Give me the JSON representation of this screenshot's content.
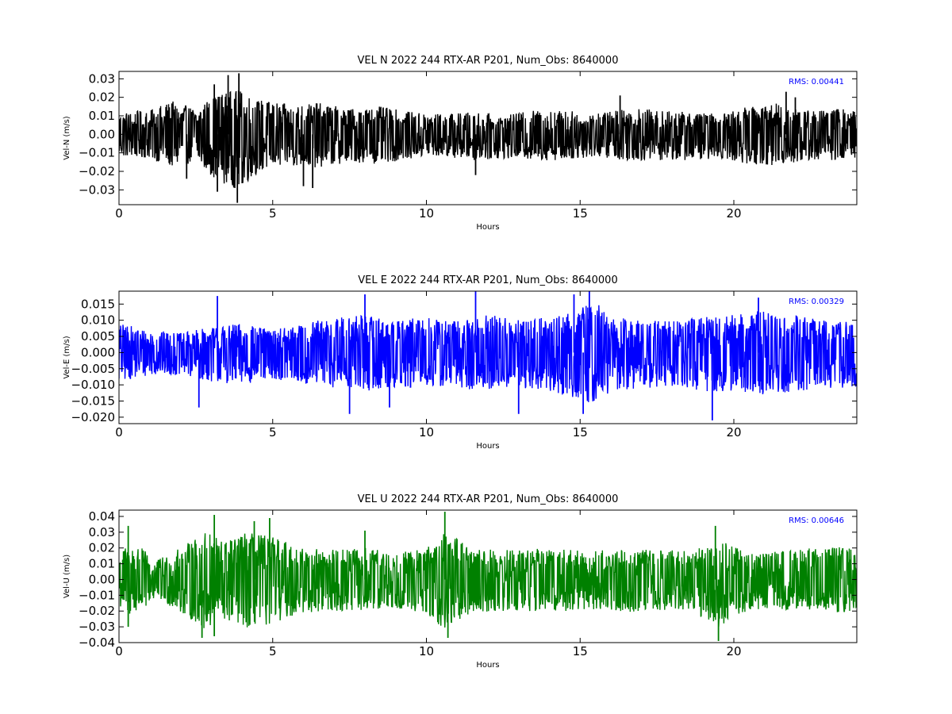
{
  "chart_data": [
    {
      "type": "line",
      "title": "VEL N 2022 244 RTX-AR  P201, Num_Obs: 8640000",
      "xlabel": "Hours",
      "ylabel": "Vel-N (m/s)",
      "xlim": [
        0,
        24
      ],
      "ylim": [
        -0.038,
        0.034
      ],
      "x_ticks": [
        0,
        5,
        10,
        15,
        20
      ],
      "y_ticks": [
        -0.03,
        -0.02,
        -0.01,
        0.0,
        0.01,
        0.02,
        0.03
      ],
      "y_tick_labels": [
        "−0.03",
        "−0.02",
        "−0.01",
        "0.00",
        "0.01",
        "0.02",
        "0.03"
      ],
      "color": "#000000",
      "annotation": "RMS:  0.00441",
      "annotation_color": "#0000ff",
      "series": [
        {
          "envelope_hours": [
            0,
            1,
            1.7,
            2.5,
            3.2,
            3.9,
            4.5,
            5.5,
            6.5,
            7.5,
            8.5,
            9.5,
            10.5,
            11.5,
            12.5,
            13.5,
            14.5,
            15.5,
            16.5,
            17.5,
            18.5,
            19.5,
            20.5,
            21.5,
            22.5,
            23.5,
            24
          ],
          "envelope_upper": [
            0.012,
            0.013,
            0.018,
            0.014,
            0.022,
            0.024,
            0.019,
            0.016,
            0.017,
            0.014,
            0.015,
            0.012,
            0.011,
            0.012,
            0.01,
            0.013,
            0.013,
            0.011,
            0.015,
            0.013,
            0.012,
            0.011,
            0.015,
            0.017,
            0.013,
            0.014,
            0.013
          ],
          "envelope_lower": [
            -0.012,
            -0.013,
            -0.018,
            -0.015,
            -0.025,
            -0.03,
            -0.021,
            -0.017,
            -0.018,
            -0.015,
            -0.016,
            -0.013,
            -0.012,
            -0.014,
            -0.013,
            -0.014,
            -0.014,
            -0.012,
            -0.014,
            -0.014,
            -0.014,
            -0.013,
            -0.016,
            -0.017,
            -0.014,
            -0.014,
            -0.013
          ],
          "spikes": [
            {
              "x": 3.9,
              "y": 0.033
            },
            {
              "x": 3.85,
              "y": -0.037
            },
            {
              "x": 3.55,
              "y": 0.032
            },
            {
              "x": 3.2,
              "y": -0.031
            },
            {
              "x": 6.3,
              "y": -0.029
            },
            {
              "x": 6.0,
              "y": -0.028
            },
            {
              "x": 2.2,
              "y": -0.024
            },
            {
              "x": 3.1,
              "y": 0.027
            },
            {
              "x": 21.7,
              "y": 0.023
            },
            {
              "x": 22.0,
              "y": 0.02
            },
            {
              "x": 16.3,
              "y": 0.021
            },
            {
              "x": 11.6,
              "y": -0.022
            }
          ]
        }
      ]
    },
    {
      "type": "line",
      "title": "VEL E 2022 244 RTX-AR  P201, Num_Obs: 8640000",
      "xlabel": "Hours",
      "ylabel": "Vel-E (m/s)",
      "xlim": [
        0,
        24
      ],
      "ylim": [
        -0.022,
        0.019
      ],
      "x_ticks": [
        0,
        5,
        10,
        15,
        20
      ],
      "y_ticks": [
        -0.02,
        -0.015,
        -0.01,
        -0.005,
        0.0,
        0.005,
        0.01,
        0.015
      ],
      "y_tick_labels": [
        "−0.020",
        "−0.015",
        "−0.010",
        "−0.005",
        "0.000",
        "0.005",
        "0.010",
        "0.015"
      ],
      "color": "#0000ff",
      "annotation": "RMS:  0.00329",
      "annotation_color": "#0000ff",
      "series": [
        {
          "envelope_hours": [
            0,
            1,
            2,
            3,
            4,
            5,
            6,
            7,
            8,
            9,
            10,
            11,
            12,
            13,
            14,
            15,
            15.5,
            16,
            17,
            18,
            19,
            20,
            21,
            22,
            23,
            24
          ],
          "envelope_upper": [
            0.009,
            0.007,
            0.006,
            0.008,
            0.009,
            0.007,
            0.009,
            0.011,
            0.012,
            0.01,
            0.011,
            0.01,
            0.012,
            0.01,
            0.011,
            0.014,
            0.016,
            0.011,
            0.01,
            0.01,
            0.011,
            0.012,
            0.013,
            0.012,
            0.01,
            0.01
          ],
          "envelope_lower": [
            -0.009,
            -0.007,
            -0.007,
            -0.009,
            -0.01,
            -0.008,
            -0.01,
            -0.011,
            -0.012,
            -0.011,
            -0.011,
            -0.011,
            -0.012,
            -0.011,
            -0.012,
            -0.015,
            -0.016,
            -0.012,
            -0.011,
            -0.011,
            -0.012,
            -0.012,
            -0.013,
            -0.012,
            -0.011,
            -0.011
          ],
          "spikes": [
            {
              "x": 19.3,
              "y": -0.021
            },
            {
              "x": 7.5,
              "y": -0.019
            },
            {
              "x": 13.0,
              "y": -0.019
            },
            {
              "x": 15.1,
              "y": -0.019
            },
            {
              "x": 11.6,
              "y": 0.019
            },
            {
              "x": 8.0,
              "y": 0.018
            },
            {
              "x": 15.3,
              "y": 0.019
            },
            {
              "x": 3.2,
              "y": 0.0175
            },
            {
              "x": 20.8,
              "y": 0.017
            },
            {
              "x": 14.8,
              "y": 0.018
            },
            {
              "x": 2.6,
              "y": -0.017
            },
            {
              "x": 8.8,
              "y": -0.017
            }
          ]
        }
      ]
    },
    {
      "type": "line",
      "title": "VEL U 2022 244 RTX-AR  P201, Num_Obs: 8640000",
      "xlabel": "Hours",
      "ylabel": "Vel-U (m/s)",
      "xlim": [
        0,
        24
      ],
      "ylim": [
        -0.04,
        0.044
      ],
      "x_ticks": [
        0,
        5,
        10,
        15,
        20
      ],
      "y_ticks": [
        -0.04,
        -0.03,
        -0.02,
        -0.01,
        0.0,
        0.01,
        0.02,
        0.03,
        0.04
      ],
      "y_tick_labels": [
        "−0.04",
        "−0.03",
        "−0.02",
        "−0.01",
        "0.00",
        "0.01",
        "0.02",
        "0.03",
        "0.04"
      ],
      "color": "#008000",
      "annotation": "RMS:  0.00646",
      "annotation_color": "#0000ff",
      "series": [
        {
          "envelope_hours": [
            0,
            0.5,
            1.2,
            2,
            2.8,
            3.5,
            4.2,
            5,
            6,
            7,
            8,
            9,
            10,
            10.6,
            11.5,
            12.5,
            13.5,
            14.5,
            15.5,
            16.5,
            17.5,
            18.5,
            19.5,
            20.5,
            21.5,
            22.5,
            23.5,
            24
          ],
          "envelope_upper": [
            0.018,
            0.024,
            0.012,
            0.02,
            0.03,
            0.025,
            0.03,
            0.027,
            0.02,
            0.019,
            0.02,
            0.017,
            0.02,
            0.03,
            0.02,
            0.019,
            0.02,
            0.019,
            0.018,
            0.02,
            0.019,
            0.018,
            0.025,
            0.018,
            0.018,
            0.02,
            0.021,
            0.019
          ],
          "envelope_lower": [
            -0.018,
            -0.025,
            -0.012,
            -0.021,
            -0.032,
            -0.027,
            -0.031,
            -0.028,
            -0.021,
            -0.02,
            -0.021,
            -0.018,
            -0.022,
            -0.032,
            -0.021,
            -0.02,
            -0.02,
            -0.02,
            -0.019,
            -0.021,
            -0.02,
            -0.019,
            -0.03,
            -0.019,
            -0.019,
            -0.02,
            -0.021,
            -0.019
          ],
          "spikes": [
            {
              "x": 10.6,
              "y": 0.043
            },
            {
              "x": 3.1,
              "y": 0.041
            },
            {
              "x": 4.9,
              "y": 0.039
            },
            {
              "x": 19.5,
              "y": -0.039
            },
            {
              "x": 10.7,
              "y": -0.037
            },
            {
              "x": 2.7,
              "y": -0.037
            },
            {
              "x": 3.1,
              "y": -0.036
            },
            {
              "x": 4.4,
              "y": 0.037
            },
            {
              "x": 0.3,
              "y": 0.034
            },
            {
              "x": 19.4,
              "y": 0.034
            },
            {
              "x": 0.3,
              "y": -0.03
            },
            {
              "x": 8.0,
              "y": 0.031
            }
          ]
        }
      ]
    }
  ]
}
